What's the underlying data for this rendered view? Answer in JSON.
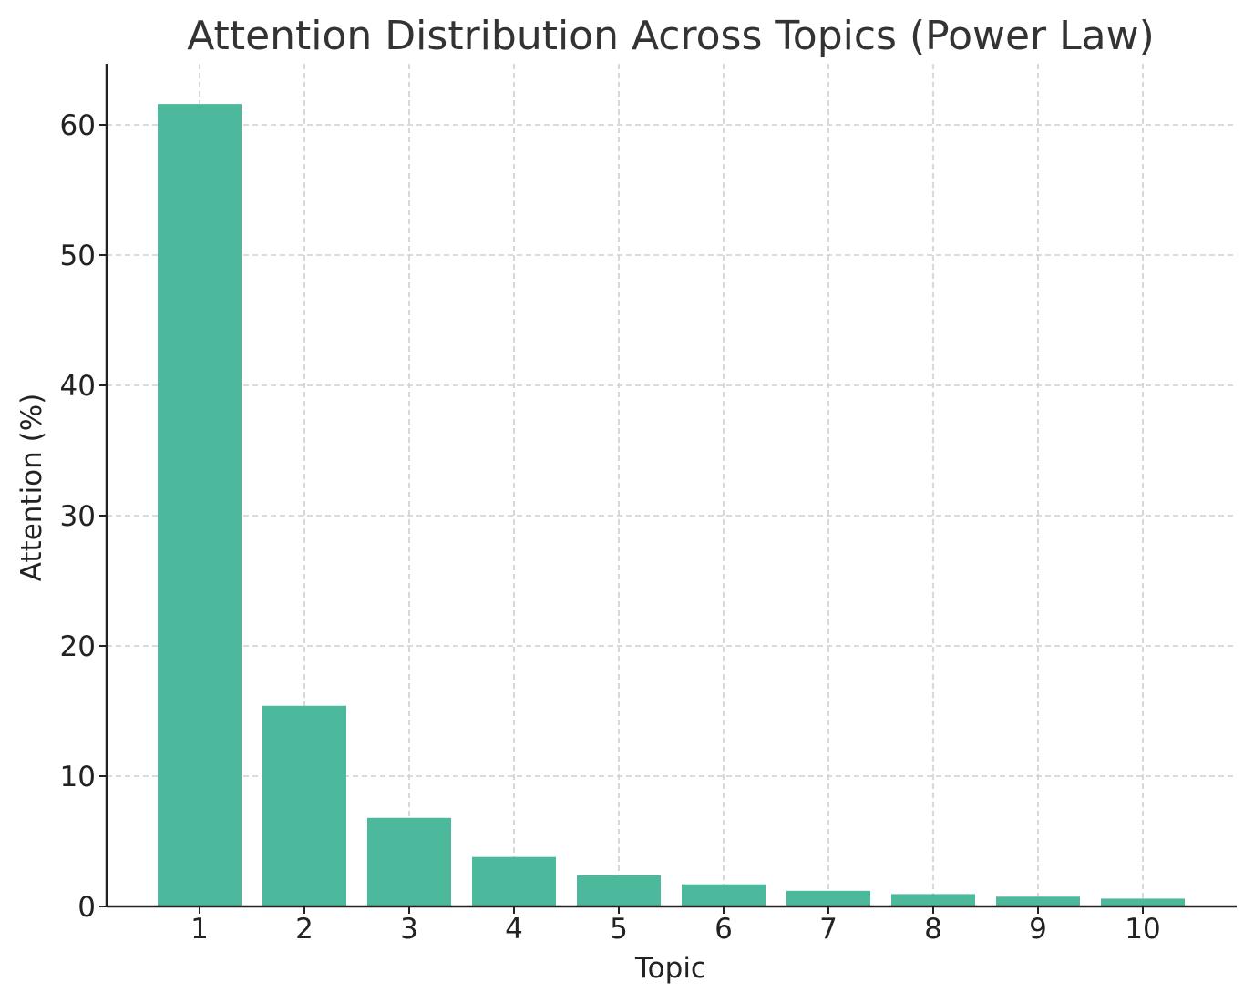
{
  "chart_data": {
    "type": "bar",
    "title": "Attention Distribution Across Topics (Power Law)",
    "xlabel": "Topic",
    "ylabel": "Attention (%)",
    "categories": [
      "1",
      "2",
      "3",
      "4",
      "5",
      "6",
      "7",
      "8",
      "9",
      "10"
    ],
    "values": [
      61.6,
      15.4,
      6.8,
      3.8,
      2.4,
      1.7,
      1.2,
      0.95,
      0.75,
      0.6
    ],
    "ylim": [
      0,
      65
    ],
    "yticks": [
      "0",
      "10",
      "20",
      "30",
      "40",
      "50",
      "60"
    ],
    "grid": true,
    "bar_color": "#4cb99d"
  }
}
